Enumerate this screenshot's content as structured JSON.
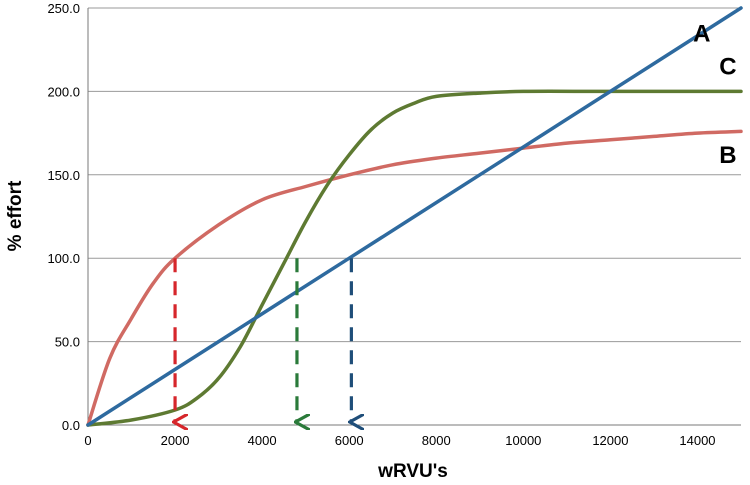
{
  "chart_data": {
    "type": "line",
    "xlabel": "wRVU's",
    "ylabel": "% effort",
    "xlim": [
      0,
      15000
    ],
    "ylim": [
      0,
      250
    ],
    "x_ticks": [
      "0",
      "2000",
      "4000",
      "6000",
      "8000",
      "10000",
      "12000",
      "14000"
    ],
    "y_ticks": [
      "0.0",
      "50.0",
      "100.0",
      "150.0",
      "200.0",
      "250.0"
    ],
    "grid": "horizontal",
    "series": [
      {
        "name": "A",
        "color": "#2e6a9f",
        "x": [
          0,
          3000,
          6000,
          9000,
          12000,
          15000
        ],
        "y": [
          0,
          50,
          100,
          150,
          200,
          250
        ]
      },
      {
        "name": "B",
        "color": "#d06a63",
        "x": [
          0,
          500,
          1000,
          1500,
          2000,
          3000,
          4000,
          5000,
          6000,
          7000,
          8000,
          9000,
          10000,
          11000,
          12000,
          13000,
          14000,
          15000
        ],
        "y": [
          0,
          40,
          64,
          85,
          100,
          120,
          135,
          143,
          150,
          156,
          160,
          163,
          166,
          169,
          171,
          173,
          175,
          176
        ]
      },
      {
        "name": "C",
        "color": "#5e7a32",
        "x": [
          0,
          1000,
          2000,
          2500,
          3000,
          3500,
          4000,
          4500,
          5000,
          5500,
          6000,
          6500,
          7000,
          7500,
          8000,
          9000,
          10000,
          12000,
          15000
        ],
        "y": [
          0,
          3,
          9,
          16,
          28,
          47,
          72,
          97,
          122,
          144,
          162,
          177,
          187,
          193,
          197,
          199,
          200,
          200,
          200
        ]
      }
    ],
    "annotations": [
      {
        "type": "dashed-arrow",
        "color": "#d6262b",
        "x": 2000,
        "from_y": 100,
        "to_y": 0
      },
      {
        "type": "dashed-arrow",
        "color": "#2a7a3a",
        "x": 4800,
        "from_y": 100,
        "to_y": 0
      },
      {
        "type": "dashed-arrow",
        "color": "#1f4e79",
        "x": 6050,
        "from_y": 100,
        "to_y": 0
      }
    ]
  }
}
